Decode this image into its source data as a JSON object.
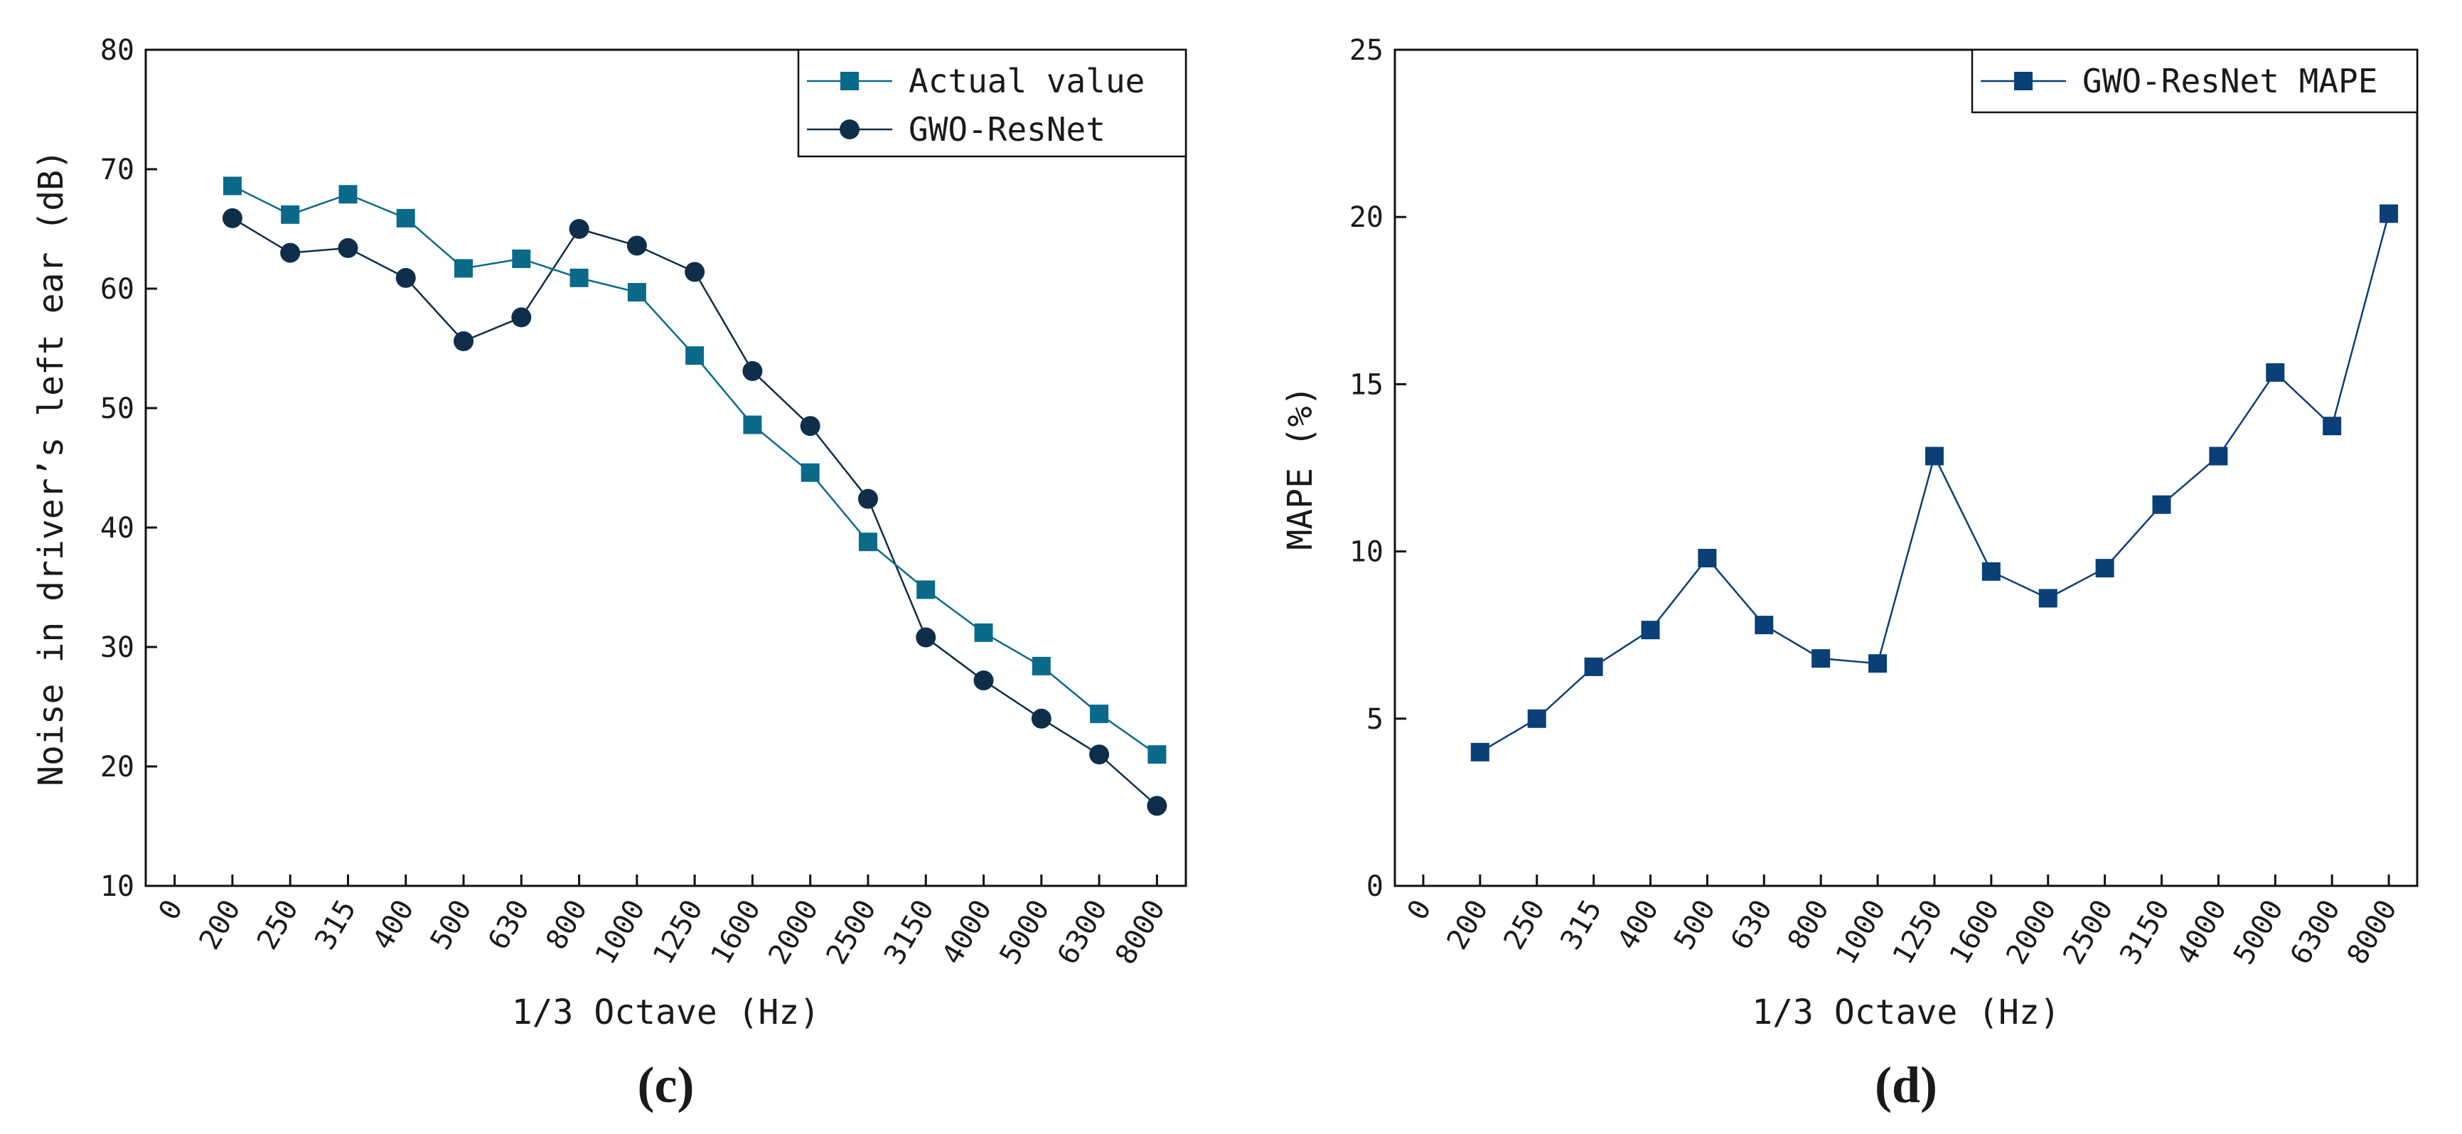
{
  "chart_data": [
    {
      "type": "line",
      "panel_label": "(c)",
      "title": "",
      "xlabel": "1/3 Octave (Hz)",
      "ylabel": "Noise in driver’s left ear (dB)",
      "xticks": [
        "0",
        "200",
        "250",
        "315",
        "400",
        "500",
        "630",
        "800",
        "1000",
        "1250",
        "1600",
        "2000",
        "2500",
        "3150",
        "4000",
        "5000",
        "6300",
        "8000"
      ],
      "categories": [
        "200",
        "250",
        "315",
        "400",
        "500",
        "630",
        "800",
        "1000",
        "1250",
        "1600",
        "2000",
        "2500",
        "3150",
        "4000",
        "5000",
        "6300",
        "8000"
      ],
      "ylim": [
        10,
        80
      ],
      "yticks": [
        10,
        20,
        30,
        40,
        50,
        60,
        70,
        80
      ],
      "grid": false,
      "legend_position": "top-right",
      "series": [
        {
          "name": "Actual value",
          "marker": "square",
          "color": "#0b6a8a",
          "values": [
            68.6,
            66.2,
            67.9,
            65.9,
            61.7,
            62.5,
            60.9,
            59.7,
            54.4,
            48.6,
            44.6,
            38.8,
            34.8,
            31.2,
            28.4,
            24.4,
            21.0
          ]
        },
        {
          "name": "GWO-ResNet",
          "marker": "circle",
          "color": "#0f2e4a",
          "values": [
            65.9,
            63.0,
            63.4,
            60.9,
            55.6,
            57.6,
            65.0,
            63.6,
            61.4,
            53.1,
            48.5,
            42.4,
            30.8,
            27.2,
            24.0,
            21.0,
            16.7
          ]
        }
      ]
    },
    {
      "type": "line",
      "panel_label": "(d)",
      "title": "",
      "xlabel": "1/3 Octave (Hz)",
      "ylabel": "MAPE (%)",
      "xticks": [
        "0",
        "200",
        "250",
        "315",
        "400",
        "500",
        "630",
        "800",
        "1000",
        "1250",
        "1600",
        "2000",
        "2500",
        "3150",
        "4000",
        "5000",
        "6300",
        "8000"
      ],
      "categories": [
        "200",
        "250",
        "315",
        "400",
        "500",
        "630",
        "800",
        "1000",
        "1250",
        "1600",
        "2000",
        "2500",
        "3150",
        "4000",
        "5000",
        "6300",
        "8000"
      ],
      "ylim": [
        0,
        25
      ],
      "yticks": [
        0,
        5,
        10,
        15,
        20,
        25
      ],
      "grid": false,
      "legend_position": "top-right",
      "series": [
        {
          "name": "GWO-ResNet MAPE",
          "marker": "square",
          "color": "#0a3f78",
          "values": [
            4.0,
            5.0,
            6.55,
            7.65,
            9.8,
            7.8,
            6.8,
            6.65,
            12.85,
            9.4,
            8.6,
            9.5,
            11.4,
            12.85,
            15.35,
            13.75,
            20.1
          ]
        }
      ]
    }
  ]
}
